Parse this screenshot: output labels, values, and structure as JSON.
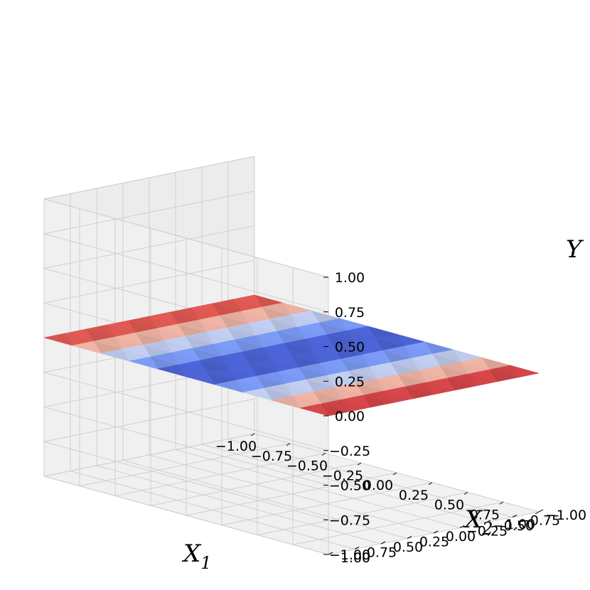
{
  "chart_data": {
    "type": "surface3d",
    "colormap": "coolwarm",
    "grid": true,
    "x": {
      "label": "X",
      "label_subscript": "1",
      "range": [
        -1,
        1
      ],
      "ticks": [
        -1.0,
        -0.75,
        -0.5,
        -0.25,
        0.0,
        0.25,
        0.5,
        0.75,
        1.0
      ],
      "tick_labels": [
        "−1.00",
        "−0.75",
        "−0.50",
        "−0.25",
        "0.00",
        "0.25",
        "0.50",
        "0.75",
        "1.00"
      ]
    },
    "y": {
      "label": "X",
      "label_subscript": "2",
      "range": [
        -1,
        1
      ],
      "ticks": [
        -1.0,
        -0.75,
        -0.5,
        -0.25,
        0.0,
        0.25,
        0.5,
        0.75,
        1.0
      ],
      "tick_labels": [
        "−1.00",
        "−0.75",
        "−0.50",
        "−0.25",
        "0.00",
        "0.25",
        "0.50",
        "0.75",
        "1.00"
      ]
    },
    "z": {
      "label": "Y",
      "range": [
        -1,
        1
      ],
      "ticks": [
        -1.0,
        -0.75,
        -0.5,
        -0.25,
        0.0,
        0.25,
        0.5,
        0.75,
        1.0
      ],
      "tick_labels": [
        "−1.00",
        "−0.75",
        "−0.50",
        "−0.25",
        "0.00",
        "0.25",
        "0.50",
        "0.75",
        "1.00"
      ]
    },
    "surface": {
      "description_of_values": "surface lies at Y = 0; color varies with X1 only",
      "grid_x1": [
        -1.0,
        -0.8,
        -0.6,
        -0.4,
        -0.2,
        0.0,
        0.2,
        0.4,
        0.6,
        0.8,
        1.0
      ],
      "grid_x2": [
        -1.0,
        -0.8,
        -0.6,
        -0.4,
        -0.2,
        0.0,
        0.2,
        0.4,
        0.6,
        0.8,
        1.0
      ],
      "height": 0,
      "color_value_by_x1": [
        0.9,
        0.6,
        0.05,
        -0.45,
        -0.8,
        -1.0,
        -0.8,
        -0.45,
        0.05,
        0.6,
        1.0
      ]
    }
  }
}
